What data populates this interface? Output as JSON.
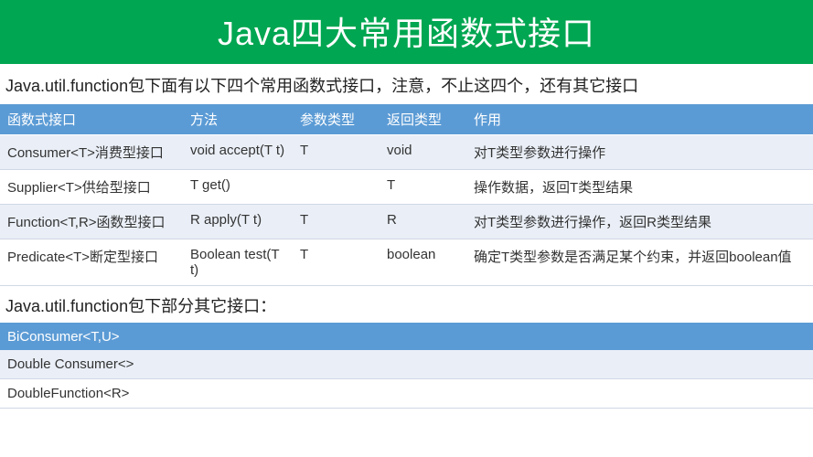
{
  "title": "Java四大常用函数式接口",
  "intro": "Java.util.function包下面有以下四个常用函数式接口，注意，不止这四个，还有其它接口",
  "table1": {
    "headers": [
      "函数式接口",
      "方法",
      "参数类型",
      "返回类型",
      "作用"
    ],
    "rows": [
      [
        "Consumer<T>消费型接口",
        "void accept(T t)",
        "T",
        "void",
        "对T类型参数进行操作"
      ],
      [
        "Supplier<T>供给型接口",
        "T get()",
        "",
        "T",
        "操作数据，返回T类型结果"
      ],
      [
        "Function<T,R>函数型接口",
        "R apply(T t)",
        "T",
        "R",
        "对T类型参数进行操作，返回R类型结果"
      ],
      [
        "Predicate<T>断定型接口",
        "Boolean test(T t)",
        "T",
        "boolean",
        "确定T类型参数是否满足某个约束，并返回boolean值"
      ]
    ]
  },
  "subhead": "Java.util.function包下部分其它接口：",
  "table2": {
    "headers": [
      "BiConsumer<T,U>",
      "",
      "",
      "",
      ""
    ],
    "rows": [
      [
        "Double Consumer<>",
        "",
        "",
        "",
        ""
      ],
      [
        "DoubleFunction<R>",
        "",
        "",
        "",
        ""
      ]
    ]
  },
  "colors": {
    "title_bg": "#00a651",
    "header_bg": "#5b9bd5",
    "odd_row": "#eaeff7",
    "even_row": "#ffffff",
    "border": "#d0d7e5"
  }
}
